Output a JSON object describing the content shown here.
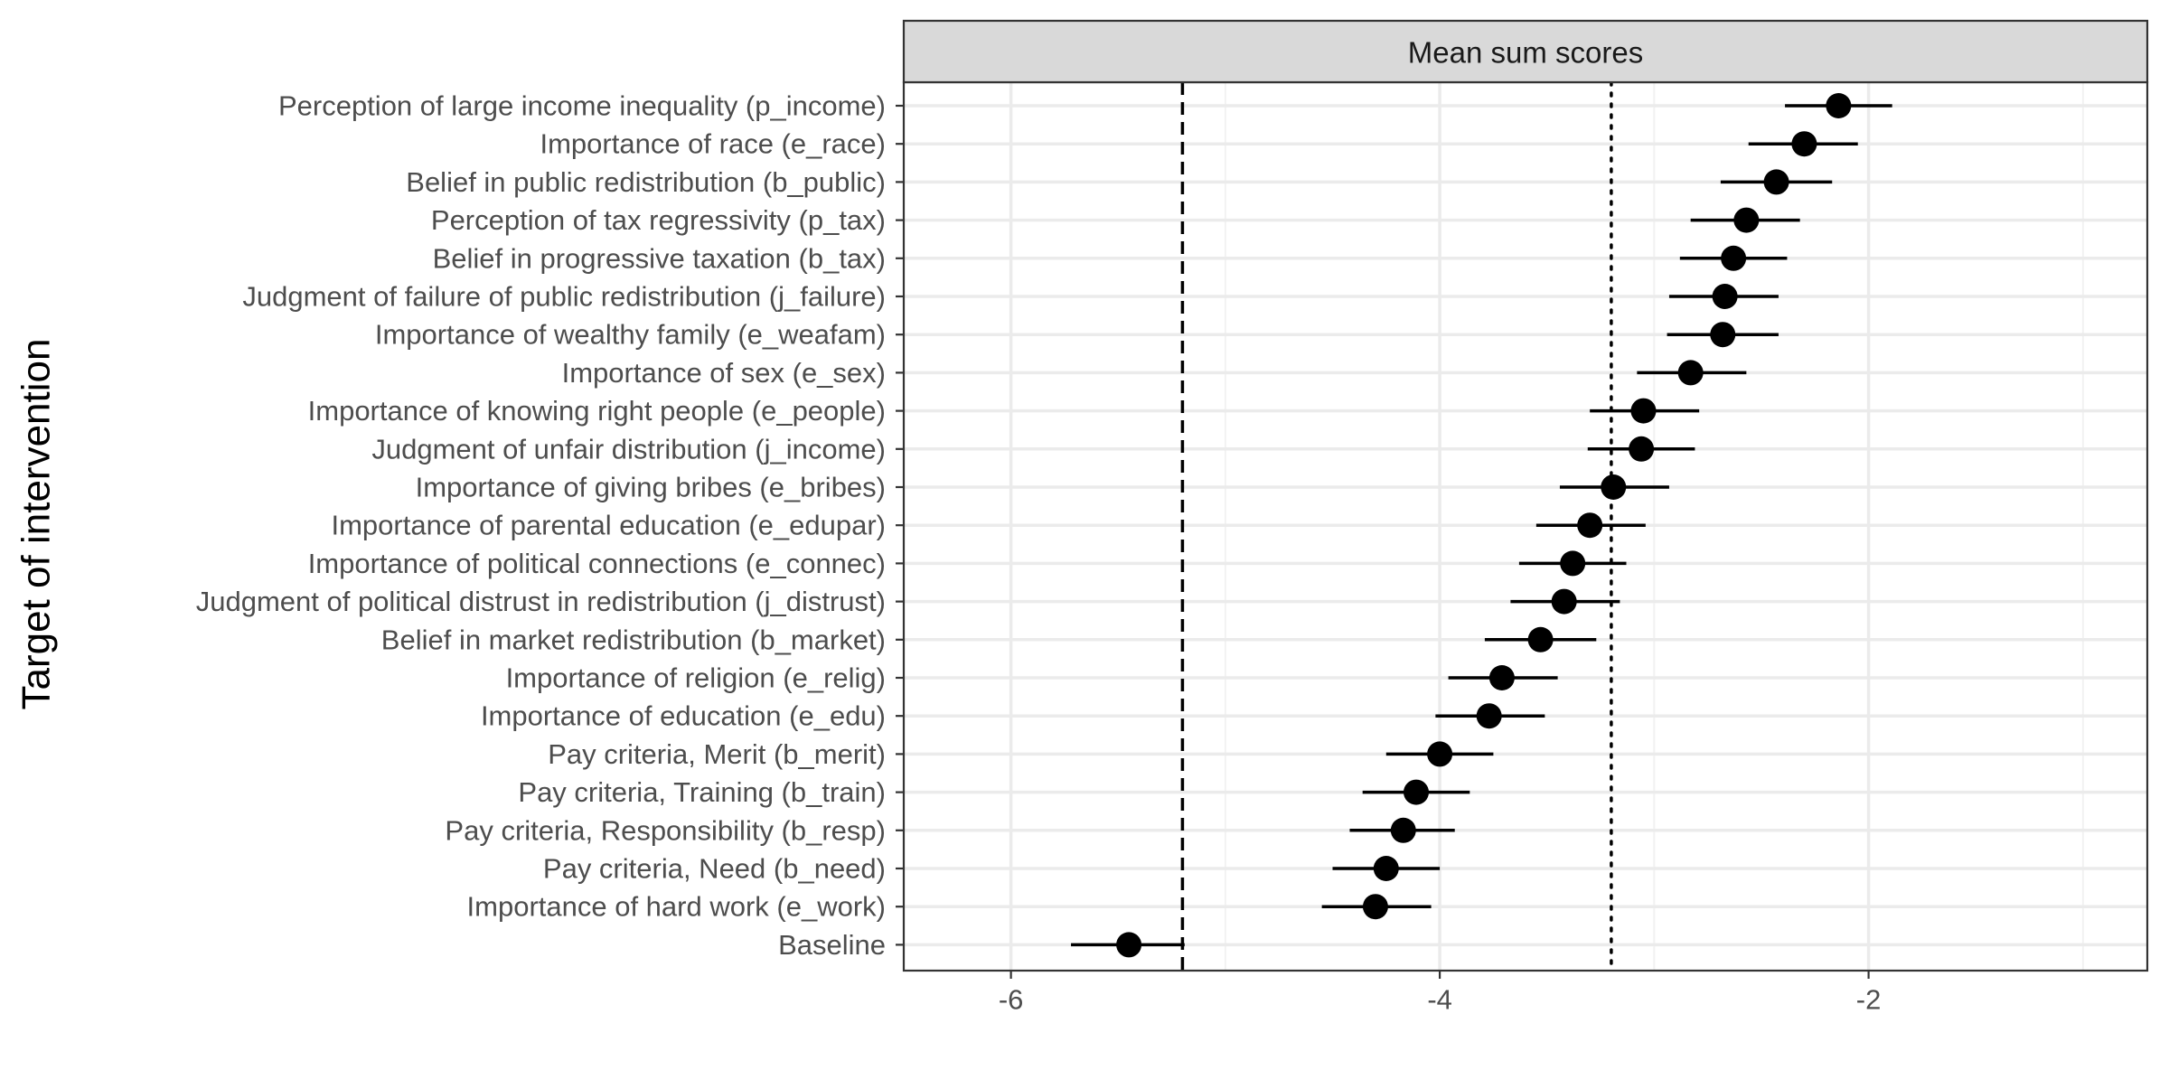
{
  "chart_data": {
    "type": "scatter",
    "facet_title": "Mean sum scores",
    "ylabel": "Target of intervention",
    "xlabel": "",
    "xlim": [
      -6.5,
      -0.7
    ],
    "x_ticks": [
      -6,
      -4,
      -2
    ],
    "x_tick_labels": [
      "-6",
      "-4",
      "-2"
    ],
    "grid": true,
    "reference_lines": [
      {
        "style": "dashed",
        "x": -5.2
      },
      {
        "style": "dotted",
        "x": -3.2
      }
    ],
    "categories": [
      "Perception of large income inequality (p_income)",
      "Importance of race (e_race)",
      "Belief in public redistribution (b_public)",
      "Perception of tax regressivity (p_tax)",
      "Belief in progressive taxation (b_tax)",
      "Judgment of failure of public redistribution (j_failure)",
      "Importance of wealthy family (e_weafam)",
      "Importance of sex (e_sex)",
      "Importance of knowing right people (e_people)",
      "Judgment of unfair distribution (j_income)",
      "Importance of giving bribes (e_bribes)",
      "Importance of parental education (e_edupar)",
      "Importance of political connections (e_connec)",
      "Judgment of political distrust in redistribution (j_distrust)",
      "Belief in market redistribution (b_market)",
      "Importance of religion (e_relig)",
      "Importance of education (e_edu)",
      "Pay criteria, Merit (b_merit)",
      "Pay criteria, Training (b_train)",
      "Pay criteria, Responsibility (b_resp)",
      "Pay criteria, Need (b_need)",
      "Importance of hard work (e_work)",
      "Baseline"
    ],
    "series": [
      {
        "values": [
          -2.14,
          -2.3,
          -2.43,
          -2.57,
          -2.63,
          -2.67,
          -2.68,
          -2.83,
          -3.05,
          -3.06,
          -3.19,
          -3.3,
          -3.38,
          -3.42,
          -3.53,
          -3.71,
          -3.77,
          -4.0,
          -4.11,
          -4.17,
          -4.25,
          -4.3,
          -5.45
        ],
        "lower": [
          -2.39,
          -2.56,
          -2.69,
          -2.83,
          -2.88,
          -2.93,
          -2.94,
          -3.08,
          -3.3,
          -3.31,
          -3.44,
          -3.55,
          -3.63,
          -3.67,
          -3.79,
          -3.96,
          -4.02,
          -4.25,
          -4.36,
          -4.42,
          -4.5,
          -4.55,
          -5.72
        ],
        "upper": [
          -1.89,
          -2.05,
          -2.17,
          -2.32,
          -2.38,
          -2.42,
          -2.42,
          -2.57,
          -2.79,
          -2.81,
          -2.93,
          -3.04,
          -3.13,
          -3.16,
          -3.27,
          -3.45,
          -3.51,
          -3.75,
          -3.86,
          -3.93,
          -4.0,
          -4.04,
          -5.19
        ]
      }
    ]
  },
  "colors": {
    "point": "#000000",
    "panel_border": "#333333",
    "strip_fill": "#d9d9d9",
    "grid_major": "#ebebeb",
    "grid_minor": "#f2f2f2"
  }
}
